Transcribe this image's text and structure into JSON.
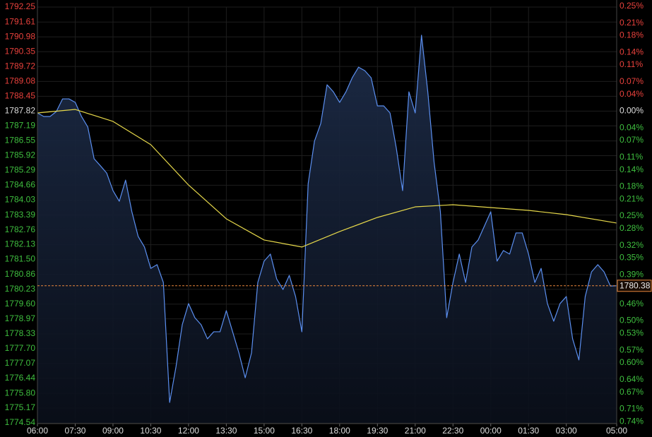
{
  "chart_data": {
    "type": "line",
    "ylim": [
      1774.54,
      1792.25
    ],
    "yticks": [
      1792.25,
      1791.61,
      1790.98,
      1790.35,
      1789.72,
      1789.08,
      1788.45,
      1787.82,
      1787.19,
      1786.55,
      1785.92,
      1785.29,
      1784.66,
      1784.03,
      1783.39,
      1782.76,
      1782.13,
      {
        "value": 1781.5,
        "label": "1781.50"
      },
      1780.86,
      1780.23,
      {
        "value": 1779.6,
        "label": "1779.60"
      },
      1778.97,
      1778.33,
      {
        "value": 1777.7,
        "label": "1777.70"
      },
      1777.07,
      1776.44,
      {
        "value": 1775.8,
        "label": "1775.80"
      },
      1775.17,
      1774.54
    ],
    "y2lim": [
      -0.743,
      0.248
    ],
    "y2ticks": [
      {
        "value": 0.25,
        "label": "0.25%"
      },
      {
        "value": 0.21,
        "label": "0.21%"
      },
      {
        "value": 0.18,
        "label": "0.18%"
      },
      {
        "value": 0.14,
        "label": "0.14%"
      },
      {
        "value": 0.11,
        "label": "0.11%"
      },
      {
        "value": 0.07,
        "label": "0.07%"
      },
      {
        "value": 0.04,
        "label": "0.04%"
      },
      {
        "value": 0,
        "label": "0.00%"
      },
      {
        "value": -0.04,
        "label": "0.04%"
      },
      {
        "value": -0.07,
        "label": "0.07%"
      },
      {
        "value": -0.11,
        "label": "0.11%"
      },
      {
        "value": -0.14,
        "label": "0.14%"
      },
      {
        "value": -0.18,
        "label": "0.18%"
      },
      {
        "value": -0.21,
        "label": "0.21%"
      },
      {
        "value": -0.25,
        "label": "0.25%"
      },
      {
        "value": -0.28,
        "label": "0.28%"
      },
      {
        "value": -0.32,
        "label": "0.32%"
      },
      {
        "value": -0.35,
        "label": "0.35%"
      },
      {
        "value": -0.39,
        "label": "0.39%"
      },
      {
        "value": -0.42,
        "label": "0.42%"
      },
      {
        "value": -0.46,
        "label": "0.46%"
      },
      {
        "value": -0.5,
        "label": "0.50%"
      },
      {
        "value": -0.53,
        "label": "0.53%"
      },
      {
        "value": -0.57,
        "label": "0.57%"
      },
      {
        "value": -0.6,
        "label": "0.60%"
      },
      {
        "value": -0.64,
        "label": "0.64%"
      },
      {
        "value": -0.67,
        "label": "0.67%"
      },
      {
        "value": -0.71,
        "label": "0.71%"
      },
      {
        "value": -0.74,
        "label": "0.74%"
      }
    ],
    "xlim": [
      "06:00",
      "05:00"
    ],
    "xticks": [
      "06:00",
      "07:30",
      "09:00",
      "10:30",
      "12:00",
      "13:30",
      "15:00",
      "16:30",
      "18:00",
      "19:30",
      "21:00",
      "22:30",
      "00:00",
      "01:30",
      "03:00",
      "05:00"
    ],
    "grid": true,
    "up_color": "#e8413c",
    "down_color": "#3fbf3f",
    "neutral_color": "#dddddd",
    "series": [
      {
        "color": "#5b8ff0",
        "area": true,
        "x": [
          "06:00",
          "06:15",
          "06:30",
          "06:45",
          "07:00",
          "07:15",
          "07:30",
          "07:45",
          "08:00",
          "08:15",
          "08:30",
          "08:45",
          "09:00",
          "09:15",
          "09:30",
          "09:45",
          "10:00",
          "10:15",
          "10:30",
          "10:45",
          "11:00",
          "11:15",
          "11:30",
          "11:45",
          "12:00",
          "12:15",
          "12:30",
          "12:45",
          "13:00",
          "13:15",
          "13:30",
          "13:45",
          "14:00",
          "14:15",
          "14:30",
          "14:45",
          "15:00",
          "15:15",
          "15:30",
          "15:45",
          "16:00",
          "16:15",
          "16:30",
          "16:45",
          "17:00",
          "17:15",
          "17:30",
          "17:45",
          "18:00",
          "18:15",
          "18:30",
          "18:45",
          "19:00",
          "19:15",
          "19:30",
          "19:45",
          "20:00",
          "20:15",
          "20:30",
          "20:45",
          "21:00",
          "21:15",
          "21:30",
          "21:45",
          "22:00",
          "22:15",
          "22:30",
          "22:45",
          "23:00",
          "23:15",
          "23:30",
          "23:45",
          "00:00",
          "00:15",
          "00:30",
          "00:45",
          "01:00",
          "01:15",
          "01:30",
          "01:45",
          "02:00",
          "02:15",
          "02:30",
          "02:45",
          "03:00",
          "03:15",
          "03:30",
          "03:45",
          "04:00",
          "04:15",
          "04:30",
          "04:45",
          "05:00"
        ],
        "values": [
          1787.74,
          1787.59,
          1787.59,
          1787.8,
          1788.34,
          1788.34,
          1788.19,
          1787.59,
          1787.14,
          1785.79,
          1785.49,
          1785.18,
          1784.43,
          1783.98,
          1784.88,
          1783.53,
          1782.48,
          1782.03,
          1781.12,
          1781.28,
          1780.52,
          1775.41,
          1776.92,
          1778.72,
          1779.62,
          1779.02,
          1778.72,
          1778.12,
          1778.42,
          1778.42,
          1779.32,
          1778.42,
          1777.52,
          1776.46,
          1777.52,
          1780.52,
          1781.43,
          1781.73,
          1780.67,
          1780.22,
          1780.82,
          1779.92,
          1778.42,
          1784.73,
          1786.54,
          1787.29,
          1788.94,
          1788.64,
          1788.19,
          1788.64,
          1789.24,
          1789.69,
          1789.54,
          1789.24,
          1788.04,
          1788.04,
          1787.74,
          1786.24,
          1784.43,
          1788.64,
          1787.74,
          1791.05,
          1788.64,
          1785.64,
          1783.53,
          1779.02,
          1780.52,
          1781.73,
          1780.52,
          1782.03,
          1782.33,
          1782.93,
          1783.53,
          1781.43,
          1781.88,
          1781.73,
          1782.63,
          1782.63,
          1781.73,
          1780.52,
          1781.12,
          1779.62,
          1778.87,
          1779.62,
          1779.92,
          1778.12,
          1777.22,
          1779.92,
          1780.97,
          1781.28,
          1780.97,
          1780.37,
          1780.38
        ]
      },
      {
        "color": "#e6d84a",
        "area": false,
        "x": [
          "06:00",
          "07:30",
          "09:00",
          "10:30",
          "12:00",
          "13:30",
          "15:00",
          "16:30",
          "18:00",
          "19:30",
          "21:00",
          "22:30",
          "00:00",
          "01:30",
          "03:00",
          "05:00"
        ],
        "values": [
          1787.74,
          1787.89,
          1787.38,
          1786.39,
          1784.67,
          1783.23,
          1782.33,
          1782.03,
          1782.69,
          1783.29,
          1783.74,
          1783.83,
          1783.71,
          1783.59,
          1783.41,
          1783.05
        ]
      }
    ],
    "last_price": 1780.38,
    "last_price_color": "#e8863c"
  }
}
